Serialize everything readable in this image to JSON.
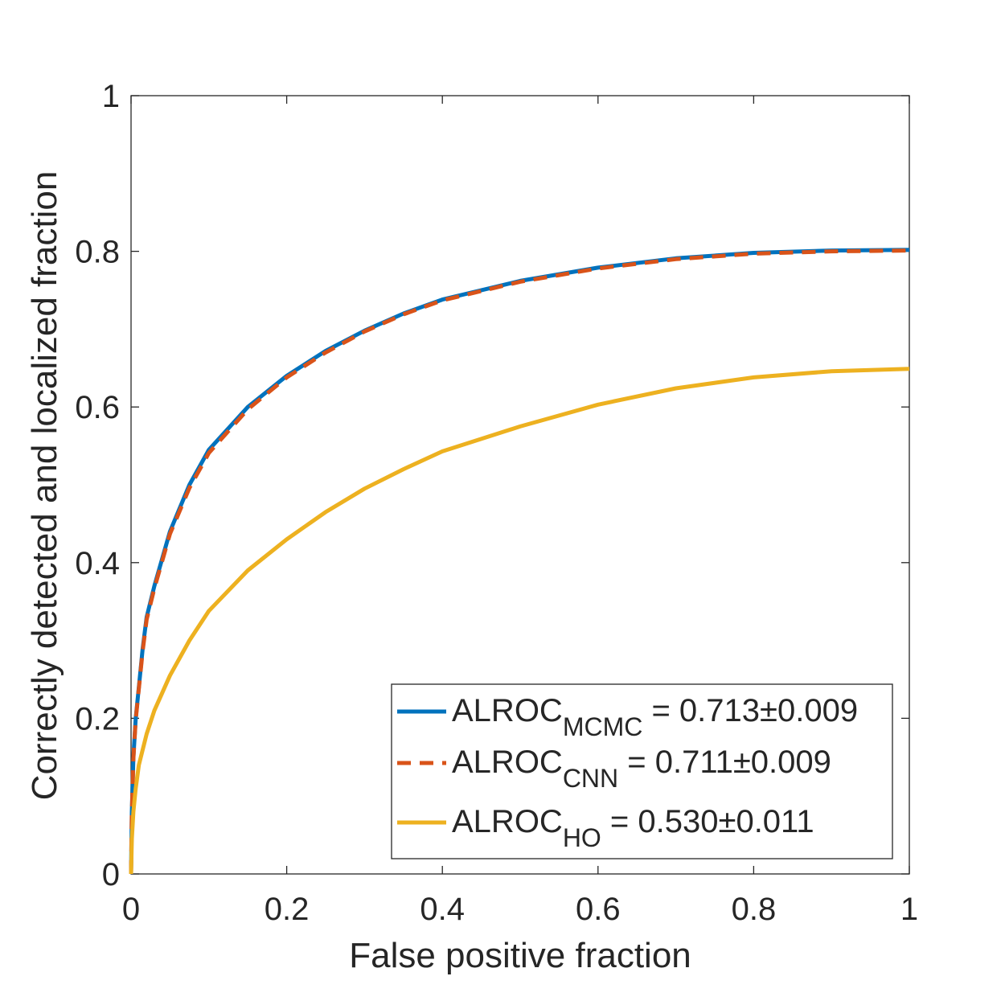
{
  "chart_data": {
    "type": "line",
    "title": "",
    "xlabel": "False positive fraction",
    "ylabel": "Correctly detected and localized fraction",
    "xlim": [
      0,
      1
    ],
    "ylim": [
      0,
      1
    ],
    "xticks": [
      0,
      0.2,
      0.4,
      0.6,
      0.8,
      1
    ],
    "yticks": [
      0,
      0.2,
      0.4,
      0.6,
      0.8,
      1
    ],
    "xtick_labels": [
      "0",
      "0.2",
      "0.4",
      "0.6",
      "0.8",
      "1"
    ],
    "ytick_labels": [
      "0",
      "0.2",
      "0.4",
      "0.6",
      "0.8",
      "1"
    ],
    "grid": false,
    "box": true,
    "legend_position": "bottom-right",
    "series": [
      {
        "legend_base": "ALROC",
        "legend_sub": "MCMC",
        "legend_value": " = 0.713",
        "legend_pm": "±",
        "legend_err": "0.009",
        "color": "#0072BD",
        "style": "solid",
        "x": [
          0,
          0.001,
          0.003,
          0.006,
          0.01,
          0.015,
          0.02,
          0.03,
          0.04,
          0.05,
          0.075,
          0.1,
          0.15,
          0.2,
          0.25,
          0.3,
          0.35,
          0.4,
          0.5,
          0.6,
          0.7,
          0.8,
          0.9,
          1.0
        ],
        "y": [
          0,
          0.08,
          0.15,
          0.2,
          0.24,
          0.29,
          0.33,
          0.37,
          0.405,
          0.44,
          0.5,
          0.545,
          0.6,
          0.64,
          0.672,
          0.698,
          0.72,
          0.738,
          0.762,
          0.779,
          0.791,
          0.798,
          0.801,
          0.802
        ]
      },
      {
        "legend_base": "ALROC",
        "legend_sub": "CNN",
        "legend_value": " = 0.711",
        "legend_pm": "±",
        "legend_err": "0.009",
        "color": "#D95319",
        "style": "dashed",
        "x": [
          0,
          0.001,
          0.003,
          0.006,
          0.01,
          0.015,
          0.02,
          0.03,
          0.04,
          0.05,
          0.075,
          0.1,
          0.15,
          0.2,
          0.25,
          0.3,
          0.35,
          0.4,
          0.5,
          0.6,
          0.7,
          0.8,
          0.9,
          1.0
        ],
        "y": [
          0,
          0.078,
          0.148,
          0.198,
          0.238,
          0.287,
          0.327,
          0.367,
          0.402,
          0.437,
          0.496,
          0.541,
          0.597,
          0.638,
          0.67,
          0.697,
          0.719,
          0.737,
          0.761,
          0.778,
          0.79,
          0.797,
          0.8,
          0.801
        ]
      },
      {
        "legend_base": "ALROC",
        "legend_sub": "HO",
        "legend_value": " = 0.530",
        "legend_pm": "±",
        "legend_err": "0.011",
        "color": "#EDB120",
        "style": "solid",
        "x": [
          0,
          0.001,
          0.003,
          0.006,
          0.01,
          0.02,
          0.03,
          0.05,
          0.075,
          0.1,
          0.15,
          0.2,
          0.25,
          0.3,
          0.35,
          0.4,
          0.5,
          0.6,
          0.7,
          0.8,
          0.9,
          1.0
        ],
        "y": [
          0,
          0.045,
          0.08,
          0.11,
          0.14,
          0.18,
          0.21,
          0.255,
          0.3,
          0.338,
          0.39,
          0.43,
          0.465,
          0.495,
          0.52,
          0.543,
          0.575,
          0.603,
          0.624,
          0.638,
          0.646,
          0.649
        ]
      }
    ]
  }
}
